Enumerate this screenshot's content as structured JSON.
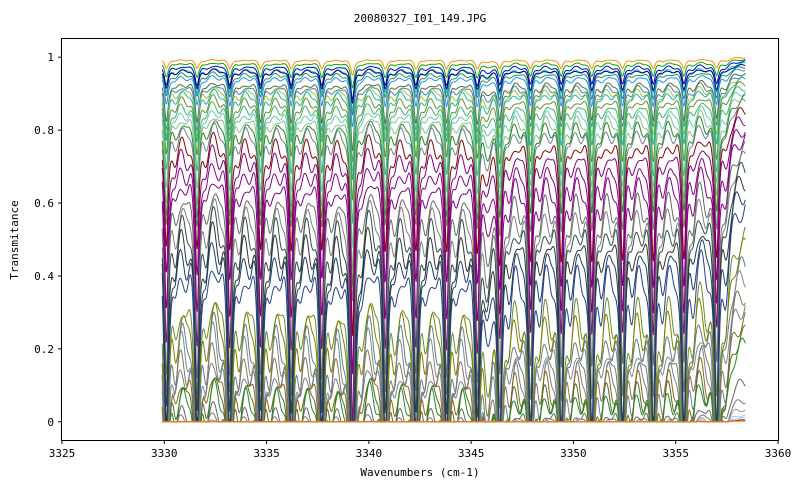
{
  "chart_data": {
    "type": "line",
    "title": "20080327_I01_149.JPG",
    "xlabel": "Wavenumbers (cm-1)",
    "ylabel": "Transmitance",
    "xlim": [
      3325,
      3360
    ],
    "ylim": [
      -0.05,
      1.05
    ],
    "x_ticks": [
      3325,
      3330,
      3335,
      3340,
      3345,
      3350,
      3355,
      3360
    ],
    "y_ticks": [
      0,
      0.2,
      0.4,
      0.6,
      0.8,
      1
    ],
    "x_tick_labels": [
      "3325",
      "3330",
      "3335",
      "3340",
      "3345",
      "3350",
      "3355",
      "3360"
    ],
    "y_tick_labels": [
      "0",
      "0.2",
      "0.4",
      "0.6",
      "0.8",
      "1"
    ],
    "grid": false,
    "legend": "none",
    "x_range_data": [
      3329.9,
      3358.4
    ],
    "absorption_lines_cm1": [
      3330.1,
      3331.6,
      3333.2,
      3334.7,
      3336.2,
      3337.7,
      3339.2,
      3340.8,
      3342.3,
      3343.8,
      3345.3,
      3346.4,
      3347.9,
      3349.4,
      3350.9,
      3352.4,
      3353.9,
      3355.4,
      3357.0
    ],
    "series": [
      {
        "baseline": 1.0,
        "color": "#ff8c00"
      },
      {
        "baseline": 0.995,
        "color": "#00aa00"
      },
      {
        "baseline": 0.99,
        "color": "#0000cc"
      },
      {
        "baseline": 0.985,
        "color": "#00cccc"
      },
      {
        "baseline": 0.98,
        "color": "#000080"
      },
      {
        "baseline": 0.975,
        "color": "#2e8b57"
      },
      {
        "baseline": 0.97,
        "color": "#1e90ff"
      },
      {
        "baseline": 0.96,
        "color": "#556b2f"
      },
      {
        "baseline": 0.955,
        "color": "#4682b4"
      },
      {
        "baseline": 0.95,
        "color": "#9acd32"
      },
      {
        "baseline": 0.945,
        "color": "#20b2aa"
      },
      {
        "baseline": 0.935,
        "color": "#6b8e23"
      },
      {
        "baseline": 0.925,
        "color": "#3cb371"
      },
      {
        "baseline": 0.915,
        "color": "#66cdaa"
      },
      {
        "baseline": 0.905,
        "color": "#8fbc8f"
      },
      {
        "baseline": 0.895,
        "color": "#228b22"
      },
      {
        "baseline": 0.885,
        "color": "#708090"
      },
      {
        "baseline": 0.865,
        "color": "#8b0000"
      },
      {
        "baseline": 0.845,
        "color": "#800080"
      },
      {
        "baseline": 0.82,
        "color": "#8b008b"
      },
      {
        "baseline": 0.795,
        "color": "#800080"
      },
      {
        "baseline": 0.765,
        "color": "#696969"
      },
      {
        "baseline": 0.74,
        "color": "#808080"
      },
      {
        "baseline": 0.715,
        "color": "#2f4f4f"
      },
      {
        "baseline": 0.685,
        "color": "#333333"
      },
      {
        "baseline": 0.655,
        "color": "#1c3f6e"
      },
      {
        "baseline": 0.615,
        "color": "#27408b"
      },
      {
        "baseline": 0.53,
        "color": "#6b8e23"
      },
      {
        "baseline": 0.5,
        "color": "#808000"
      },
      {
        "baseline": 0.455,
        "color": "#5f7f8f"
      },
      {
        "baseline": 0.425,
        "color": "#7a8b8b"
      },
      {
        "baseline": 0.38,
        "color": "#8b7355"
      },
      {
        "baseline": 0.345,
        "color": "#708090"
      },
      {
        "baseline": 0.3,
        "color": "#8b6914"
      },
      {
        "baseline": 0.26,
        "color": "#556b2f"
      },
      {
        "baseline": 0.23,
        "color": "#228b22"
      },
      {
        "baseline": 0.12,
        "color": "#666666"
      },
      {
        "baseline": 0.065,
        "color": "#777777"
      },
      {
        "baseline": 0.04,
        "color": "#999999"
      },
      {
        "baseline": 0.02,
        "color": "#87cefa"
      },
      {
        "baseline": 0.012,
        "color": "#b0c4de"
      },
      {
        "baseline": 0.005,
        "color": "#8b0000"
      },
      {
        "baseline": 0.002,
        "color": "#ff8c00"
      }
    ]
  }
}
